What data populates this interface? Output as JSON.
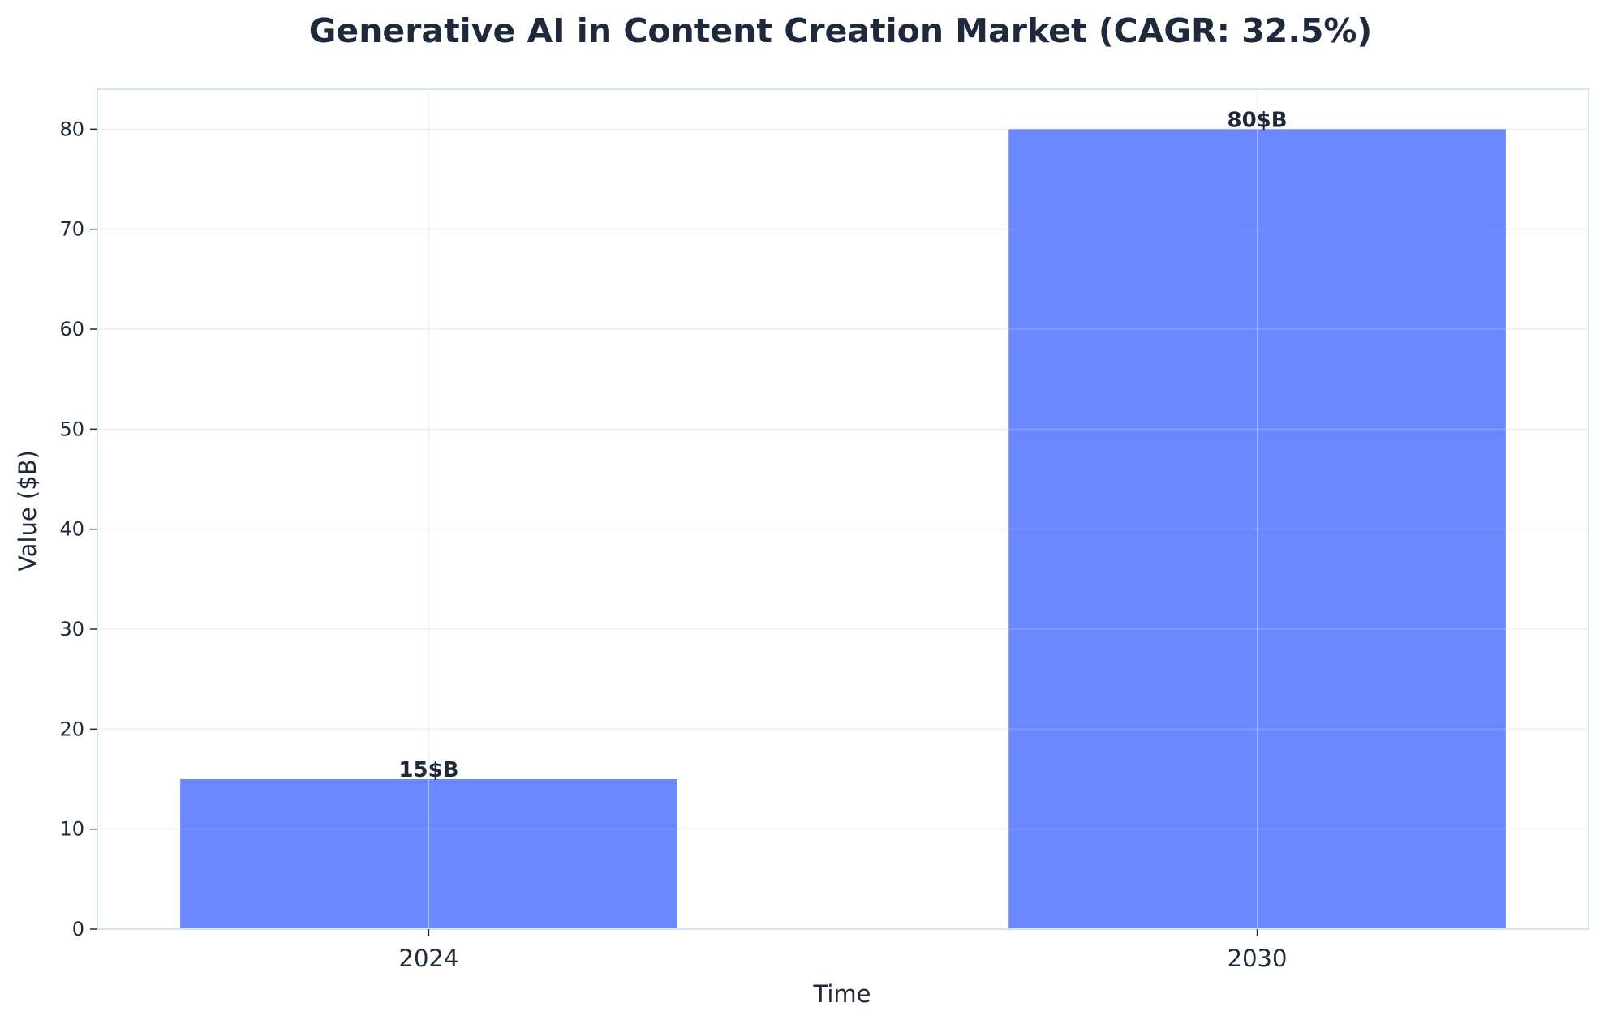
{
  "colors": {
    "bar": "#6b88ff",
    "text": "#1e293b",
    "grid": "#e8edf3",
    "frame": "#d6e4f0",
    "tick": "#1e293b"
  },
  "chart_data": {
    "type": "bar",
    "title": "Generative AI in Content Creation Market (CAGR: 32.5%)",
    "xlabel": "Time",
    "ylabel": "Value ($B)",
    "categories": [
      "2024",
      "2030"
    ],
    "values": [
      15,
      80
    ],
    "data_labels": [
      "15$B",
      "80$B"
    ],
    "ylim": [
      0,
      84
    ],
    "yticks": [
      0,
      10,
      20,
      30,
      40,
      50,
      60,
      70,
      80
    ],
    "grid": true,
    "legend": "none"
  }
}
